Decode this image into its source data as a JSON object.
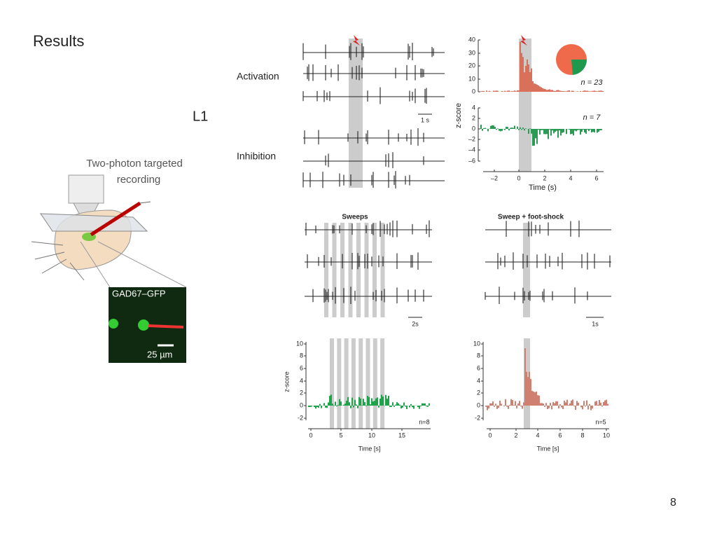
{
  "slide": {
    "title": "Results",
    "layer": "L1",
    "page_number": "8"
  },
  "illustration": {
    "caption": [
      "Two-photon targeted",
      "recording"
    ],
    "inset_label": "GAD67–GFP",
    "scale_bar": "25 µm"
  },
  "panel_a": {
    "row_labels": [
      "Activation",
      "Inhibition"
    ],
    "scale_bar": "1 s"
  },
  "panel_b": {
    "y_label": "z-score",
    "x_label": "Time (s)",
    "upper_yticks": [
      "40",
      "30",
      "20",
      "10",
      "0"
    ],
    "lower_yticks": [
      "4",
      "2",
      "0",
      "–2",
      "–4",
      "–6"
    ],
    "xticks": [
      "–2",
      "0",
      "2",
      "4",
      "6"
    ],
    "n_upper": "n = 23",
    "n_lower": "n = 7"
  },
  "panel_c": {
    "title": "Sweeps",
    "scale_bar": "2s",
    "y_label": "z-score",
    "x_label": "Time [s]",
    "yticks": [
      "10",
      "8",
      "6",
      "4",
      "2",
      "0",
      "-2"
    ],
    "xticks": [
      "0",
      "5",
      "10",
      "15"
    ],
    "n": "n=8"
  },
  "panel_d": {
    "title": "Sweep + foot-shock",
    "scale_bar": "1s",
    "x_label": "Time [s]",
    "yticks": [
      "10",
      "8",
      "6",
      "4",
      "2",
      "0",
      "-2"
    ],
    "xticks": [
      "0",
      "2",
      "4",
      "6",
      "8",
      "10"
    ],
    "n": "n=5"
  }
}
